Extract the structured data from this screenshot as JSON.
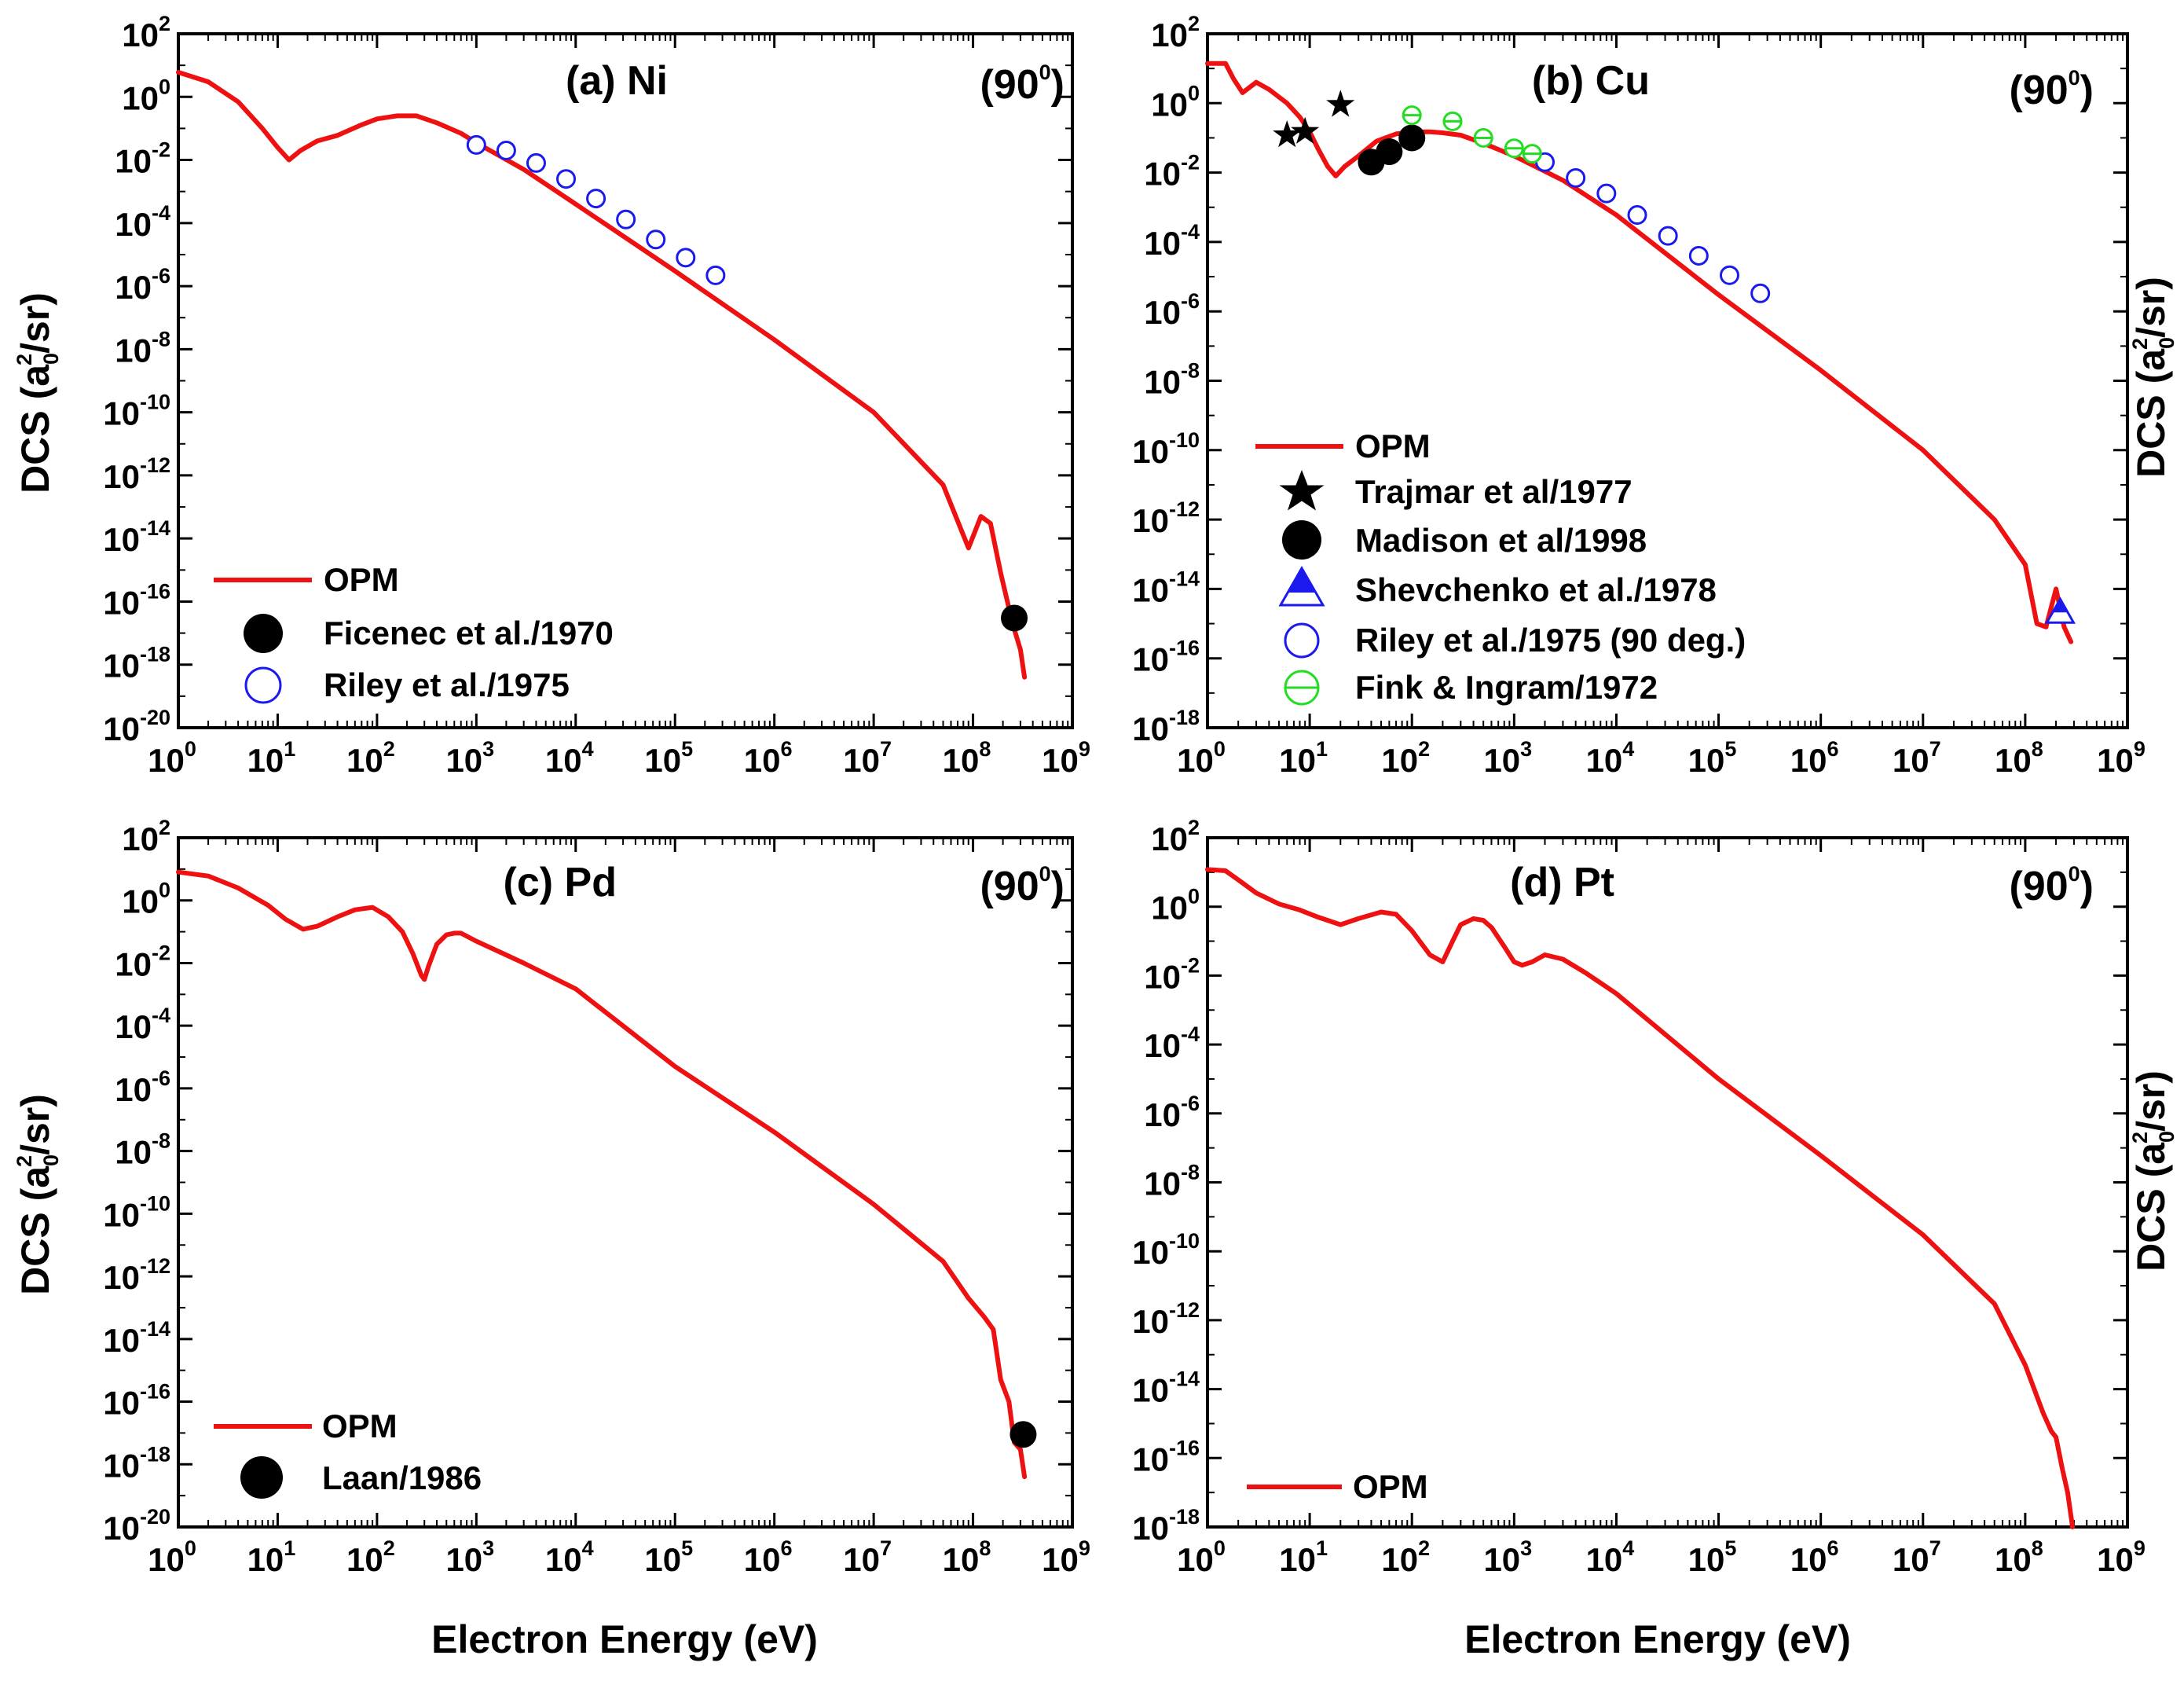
{
  "figure": {
    "x_axis_title": "Electron Energy (eV)",
    "y_axis_title_main": "DCS (a",
    "y_axis_title_sub": "0",
    "y_axis_title_sup": "2",
    "y_axis_title_tail": "/sr)",
    "angle_label_main": "(90",
    "angle_label_sup": "0",
    "angle_label_tail": ")"
  },
  "colors": {
    "opm": "#ee1111",
    "black": "#000000",
    "blue": "#1a1aee",
    "green": "#22dd22"
  },
  "chart_data": [
    {
      "type": "line",
      "title": "(a) Ni",
      "xlabel": "Electron Energy (eV)",
      "ylabel": "DCS (a0^2/sr)",
      "xscale": "log",
      "yscale": "log",
      "xlim": [
        1,
        1000000000.0
      ],
      "ylim": [
        1e-20,
        100
      ],
      "legend_position": "bottom-left",
      "series": [
        {
          "name": "OPM",
          "style": "line",
          "x": [
            1,
            2,
            4,
            7,
            10,
            13,
            17,
            25,
            40,
            70,
            100,
            160,
            250,
            400,
            700,
            1000,
            3000,
            10000,
            100000,
            1000000,
            10000000,
            50000000,
            90000000,
            120000000,
            150000000,
            190000000,
            250000000,
            300000000,
            330000000
          ],
          "y": [
            6,
            3,
            0.7,
            0.1,
            0.025,
            0.01,
            0.02,
            0.04,
            0.06,
            0.13,
            0.2,
            0.25,
            0.25,
            0.15,
            0.07,
            0.035,
            0.005,
            0.0004,
            3e-06,
            2e-08,
            1e-10,
            5e-13,
            5e-15,
            5e-14,
            3e-14,
            8e-16,
            2e-17,
            3e-18,
            4e-19
          ]
        },
        {
          "name": "Ficenec et al./1970",
          "style": "filled-circle",
          "x": [
            260000000
          ],
          "y": [
            3e-17
          ]
        },
        {
          "name": "Riley et al./1975",
          "style": "open-circle",
          "x": [
            1000,
            2000,
            4000,
            8000,
            16000,
            32000,
            64000,
            128000,
            256000
          ],
          "y": [
            0.03,
            0.02,
            0.008,
            0.0025,
            0.0006,
            0.00013,
            3e-05,
            8e-06,
            2.2e-06
          ]
        }
      ]
    },
    {
      "type": "line",
      "title": "(b) Cu",
      "xlabel": "Electron Energy (eV)",
      "ylabel": "DCS (a0^2/sr)",
      "xscale": "log",
      "yscale": "log",
      "xlim": [
        1,
        1000000000.0
      ],
      "ylim": [
        1e-18,
        100
      ],
      "legend_position": "bottom-left",
      "series": [
        {
          "name": "OPM",
          "style": "line",
          "x": [
            1,
            1.5,
            1.8,
            2.2,
            3,
            4,
            6,
            8,
            10,
            12,
            15,
            18,
            22,
            30,
            45,
            70,
            100,
            150,
            200,
            300,
            500,
            1000,
            3000,
            10000,
            100000,
            1000000,
            10000000,
            50000000,
            100000000,
            130000000,
            160000000,
            200000000,
            240000000,
            280000000
          ],
          "y": [
            14,
            14,
            5,
            2,
            4,
            2.5,
            1,
            0.4,
            0.15,
            0.05,
            0.015,
            0.008,
            0.015,
            0.03,
            0.08,
            0.13,
            0.15,
            0.15,
            0.14,
            0.12,
            0.07,
            0.03,
            0.006,
            0.0006,
            3e-06,
            2e-08,
            1e-10,
            1e-12,
            5e-14,
            1e-15,
            8e-16,
            1e-14,
            8e-16,
            3e-16
          ]
        },
        {
          "name": "Trajmar et al/1977",
          "style": "star",
          "x": [
            6,
            9,
            20
          ],
          "y": [
            0.12,
            0.15,
            0.9
          ]
        },
        {
          "name": "Madison et al/1998",
          "style": "filled-circle",
          "x": [
            40,
            60,
            100
          ],
          "y": [
            0.02,
            0.04,
            0.1
          ]
        },
        {
          "name": "Shevchenko et al./1978",
          "style": "triangle",
          "x": [
            220000000
          ],
          "y": [
            2e-15
          ]
        },
        {
          "name": "Riley et al./1975 (90 deg.)",
          "style": "open-circle",
          "x": [
            2000,
            4000,
            8000,
            16000,
            32000,
            64000,
            128000,
            256000
          ],
          "y": [
            0.02,
            0.007,
            0.0025,
            0.0006,
            0.00015,
            4e-05,
            1.1e-05,
            3.3e-06
          ]
        },
        {
          "name": "Fink & Ingram/1972",
          "style": "open-circle-bar",
          "x": [
            100,
            250,
            500,
            1000,
            1500
          ],
          "y": [
            0.45,
            0.3,
            0.1,
            0.05,
            0.035
          ]
        }
      ]
    },
    {
      "type": "line",
      "title": "(c) Pd",
      "xlabel": "Electron Energy (eV)",
      "ylabel": "DCS (a0^2/sr)",
      "xscale": "log",
      "yscale": "log",
      "xlim": [
        1,
        1000000000.0
      ],
      "ylim": [
        1e-20,
        100
      ],
      "legend_position": "bottom-left",
      "series": [
        {
          "name": "OPM",
          "style": "line",
          "x": [
            1,
            2,
            4,
            8,
            12,
            18,
            25,
            40,
            60,
            90,
            130,
            180,
            230,
            280,
            300,
            330,
            400,
            500,
            600,
            700,
            1000,
            3000,
            10000,
            100000,
            1000000,
            10000000,
            50000000,
            90000000,
            130000000,
            160000000,
            190000000,
            230000000,
            260000000,
            300000000,
            330000000
          ],
          "y": [
            8,
            6,
            2.5,
            0.7,
            0.25,
            0.12,
            0.15,
            0.3,
            0.5,
            0.6,
            0.3,
            0.1,
            0.02,
            0.004,
            0.003,
            0.008,
            0.04,
            0.08,
            0.09,
            0.09,
            0.05,
            0.01,
            0.0015,
            5e-06,
            4e-08,
            2e-10,
            3e-12,
            2e-13,
            5e-14,
            2e-14,
            5e-16,
            1e-16,
            5e-18,
            3e-18,
            4e-19
          ]
        },
        {
          "name": "Laan/1986",
          "style": "filled-circle",
          "x": [
            320000000
          ],
          "y": [
            9e-18
          ]
        }
      ]
    },
    {
      "type": "line",
      "title": "(d) Pt",
      "xlabel": "Electron Energy (eV)",
      "ylabel": "DCS (a0^2/sr)",
      "xscale": "log",
      "yscale": "log",
      "xlim": [
        1,
        1000000000.0
      ],
      "ylim": [
        1e-18,
        100
      ],
      "legend_position": "bottom-left",
      "series": [
        {
          "name": "OPM",
          "style": "line",
          "x": [
            1,
            1.5,
            2,
            3,
            5,
            8,
            12,
            20,
            30,
            50,
            70,
            100,
            150,
            200,
            250,
            300,
            400,
            500,
            600,
            800,
            1000,
            1200,
            1500,
            2000,
            3000,
            5000,
            10000,
            100000,
            1000000,
            10000000,
            50000000,
            100000000,
            150000000,
            180000000,
            200000000,
            230000000,
            260000000,
            290000000
          ],
          "y": [
            12,
            11,
            6,
            2.5,
            1.2,
            0.8,
            0.5,
            0.3,
            0.45,
            0.7,
            0.6,
            0.2,
            0.04,
            0.025,
            0.1,
            0.3,
            0.45,
            0.4,
            0.25,
            0.07,
            0.025,
            0.02,
            0.025,
            0.04,
            0.03,
            0.012,
            0.003,
            1e-05,
            6e-08,
            3e-10,
            3e-12,
            5e-14,
            2e-15,
            6e-16,
            4e-16,
            5e-17,
            1e-17,
            1e-18
          ]
        }
      ]
    }
  ]
}
